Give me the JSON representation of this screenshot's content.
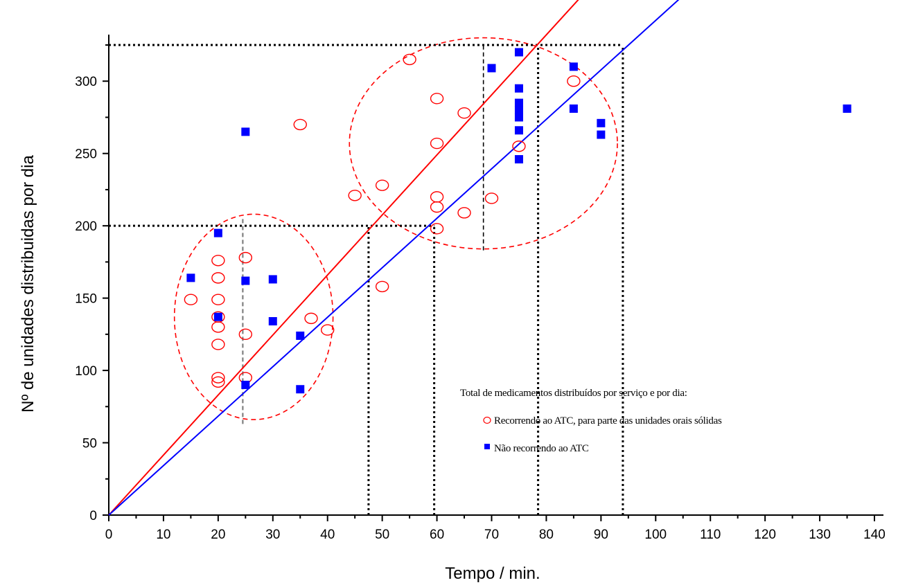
{
  "chart_data": {
    "type": "scatter",
    "xlabel": "Tempo / min.",
    "ylabel": "Nº de unidades distribuidas por dia",
    "xlim": [
      0,
      140
    ],
    "ylim": [
      0,
      325
    ],
    "x_ticks": [
      0,
      10,
      20,
      30,
      40,
      50,
      60,
      70,
      80,
      90,
      100,
      110,
      120,
      130,
      140
    ],
    "y_ticks": [
      0,
      50,
      100,
      150,
      200,
      250,
      300
    ],
    "grid": false,
    "legend": {
      "title": "Total de medicamentos distribuídos por serviço e por dia:",
      "placement": "lower-right"
    },
    "series": [
      {
        "name": "Recorrendo ao ATC, para parte das unidades orais sólidas",
        "marker": "open-circle",
        "color": "#ff0000",
        "points": [
          [
            15,
            149
          ],
          [
            20,
            176
          ],
          [
            20,
            164
          ],
          [
            20,
            149
          ],
          [
            20,
            137
          ],
          [
            20,
            130
          ],
          [
            20,
            118
          ],
          [
            20,
            95
          ],
          [
            20,
            92
          ],
          [
            25,
            178
          ],
          [
            25,
            125
          ],
          [
            25,
            95
          ],
          [
            35,
            270
          ],
          [
            37,
            136
          ],
          [
            40,
            128
          ],
          [
            45,
            221
          ],
          [
            50,
            228
          ],
          [
            50,
            158
          ],
          [
            55,
            315
          ],
          [
            60,
            288
          ],
          [
            60,
            257
          ],
          [
            60,
            220
          ],
          [
            60,
            213
          ],
          [
            60,
            198
          ],
          [
            65,
            278
          ],
          [
            65,
            209
          ],
          [
            70,
            219
          ],
          [
            75,
            255
          ],
          [
            85,
            300
          ]
        ]
      },
      {
        "name": "Não recorrendo ao ATC",
        "marker": "filled-square",
        "color": "#0000ff",
        "points": [
          [
            15,
            164
          ],
          [
            20,
            195
          ],
          [
            20,
            137
          ],
          [
            25,
            265
          ],
          [
            25,
            162
          ],
          [
            25,
            90
          ],
          [
            30,
            163
          ],
          [
            30,
            134
          ],
          [
            35,
            124
          ],
          [
            35,
            87
          ],
          [
            70,
            309
          ],
          [
            75,
            320
          ],
          [
            75,
            295
          ],
          [
            75,
            285
          ],
          [
            75,
            280
          ],
          [
            75,
            275
          ],
          [
            75,
            266
          ],
          [
            75,
            246
          ],
          [
            85,
            310
          ],
          [
            85,
            281
          ],
          [
            90,
            271
          ],
          [
            90,
            263
          ],
          [
            135,
            281
          ]
        ]
      }
    ],
    "trend_lines": [
      {
        "color": "#ff0000",
        "slope": 4.15
      },
      {
        "color": "#0000ff",
        "slope": 3.42
      }
    ],
    "reference_lines": [
      {
        "style": "dotted",
        "y": 325,
        "x_from": 0,
        "x_to": 94
      },
      {
        "style": "dotted",
        "y": 200,
        "x_from": 0,
        "x_to": 59.5
      },
      {
        "style": "dotted",
        "x": 47.5,
        "y_from": 0,
        "y_to": 200
      },
      {
        "style": "dotted",
        "x": 59.5,
        "y_from": 0,
        "y_to": 200
      },
      {
        "style": "dotted",
        "x": 78.5,
        "y_from": 0,
        "y_to": 325
      },
      {
        "style": "dotted",
        "x": 94,
        "y_from": 0,
        "y_to": 325
      },
      {
        "style": "dashed",
        "x": 68.5,
        "y_from": 183,
        "y_to": 325
      },
      {
        "style": "dashed-grey",
        "x": 24.5,
        "y_from": 63,
        "y_to": 205
      }
    ],
    "cluster_ellipses": [
      {
        "cx": 26.5,
        "cy": 137,
        "rx": 14.5,
        "ry": 71
      },
      {
        "cx": 68.5,
        "cy": 257,
        "rx": 24.5,
        "ry": 73
      }
    ]
  }
}
